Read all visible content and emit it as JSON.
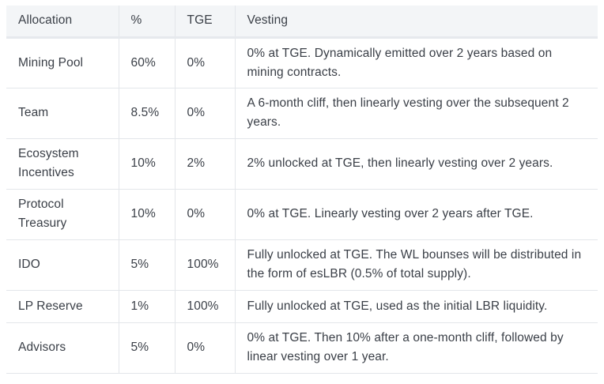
{
  "table": {
    "headers": [
      "Allocation",
      "%",
      "TGE",
      "Vesting"
    ],
    "rows": [
      {
        "allocation": "Mining Pool",
        "percent": "60%",
        "tge": "0%",
        "vesting": "0% at TGE. Dynamically emitted over 2 years based on mining contracts."
      },
      {
        "allocation": "Team",
        "percent": "8.5%",
        "tge": "0%",
        "vesting": "A 6-month cliff, then linearly vesting over the subsequent 2 years."
      },
      {
        "allocation": "Ecosystem Incentives",
        "percent": "10%",
        "tge": "2%",
        "vesting": "2% unlocked at TGE, then linearly vesting over 2 years."
      },
      {
        "allocation": "Protocol Treasury",
        "percent": "10%",
        "tge": "0%",
        "vesting": "0% at TGE. Linearly vesting over 2 years after TGE."
      },
      {
        "allocation": "IDO",
        "percent": "5%",
        "tge": "100%",
        "vesting": "Fully unlocked at TGE. The WL bounses will be distributed in the form of esLBR (0.5% of total supply)."
      },
      {
        "allocation": "LP Reserve",
        "percent": "1%",
        "tge": "100%",
        "vesting": "Fully unlocked at TGE, used as the initial LBR liquidity."
      },
      {
        "allocation": "Advisors",
        "percent": "5%",
        "tge": "0%",
        "vesting": "0% at TGE. Then 10% after a one-month cliff, followed by linear vesting over 1 year."
      }
    ]
  }
}
